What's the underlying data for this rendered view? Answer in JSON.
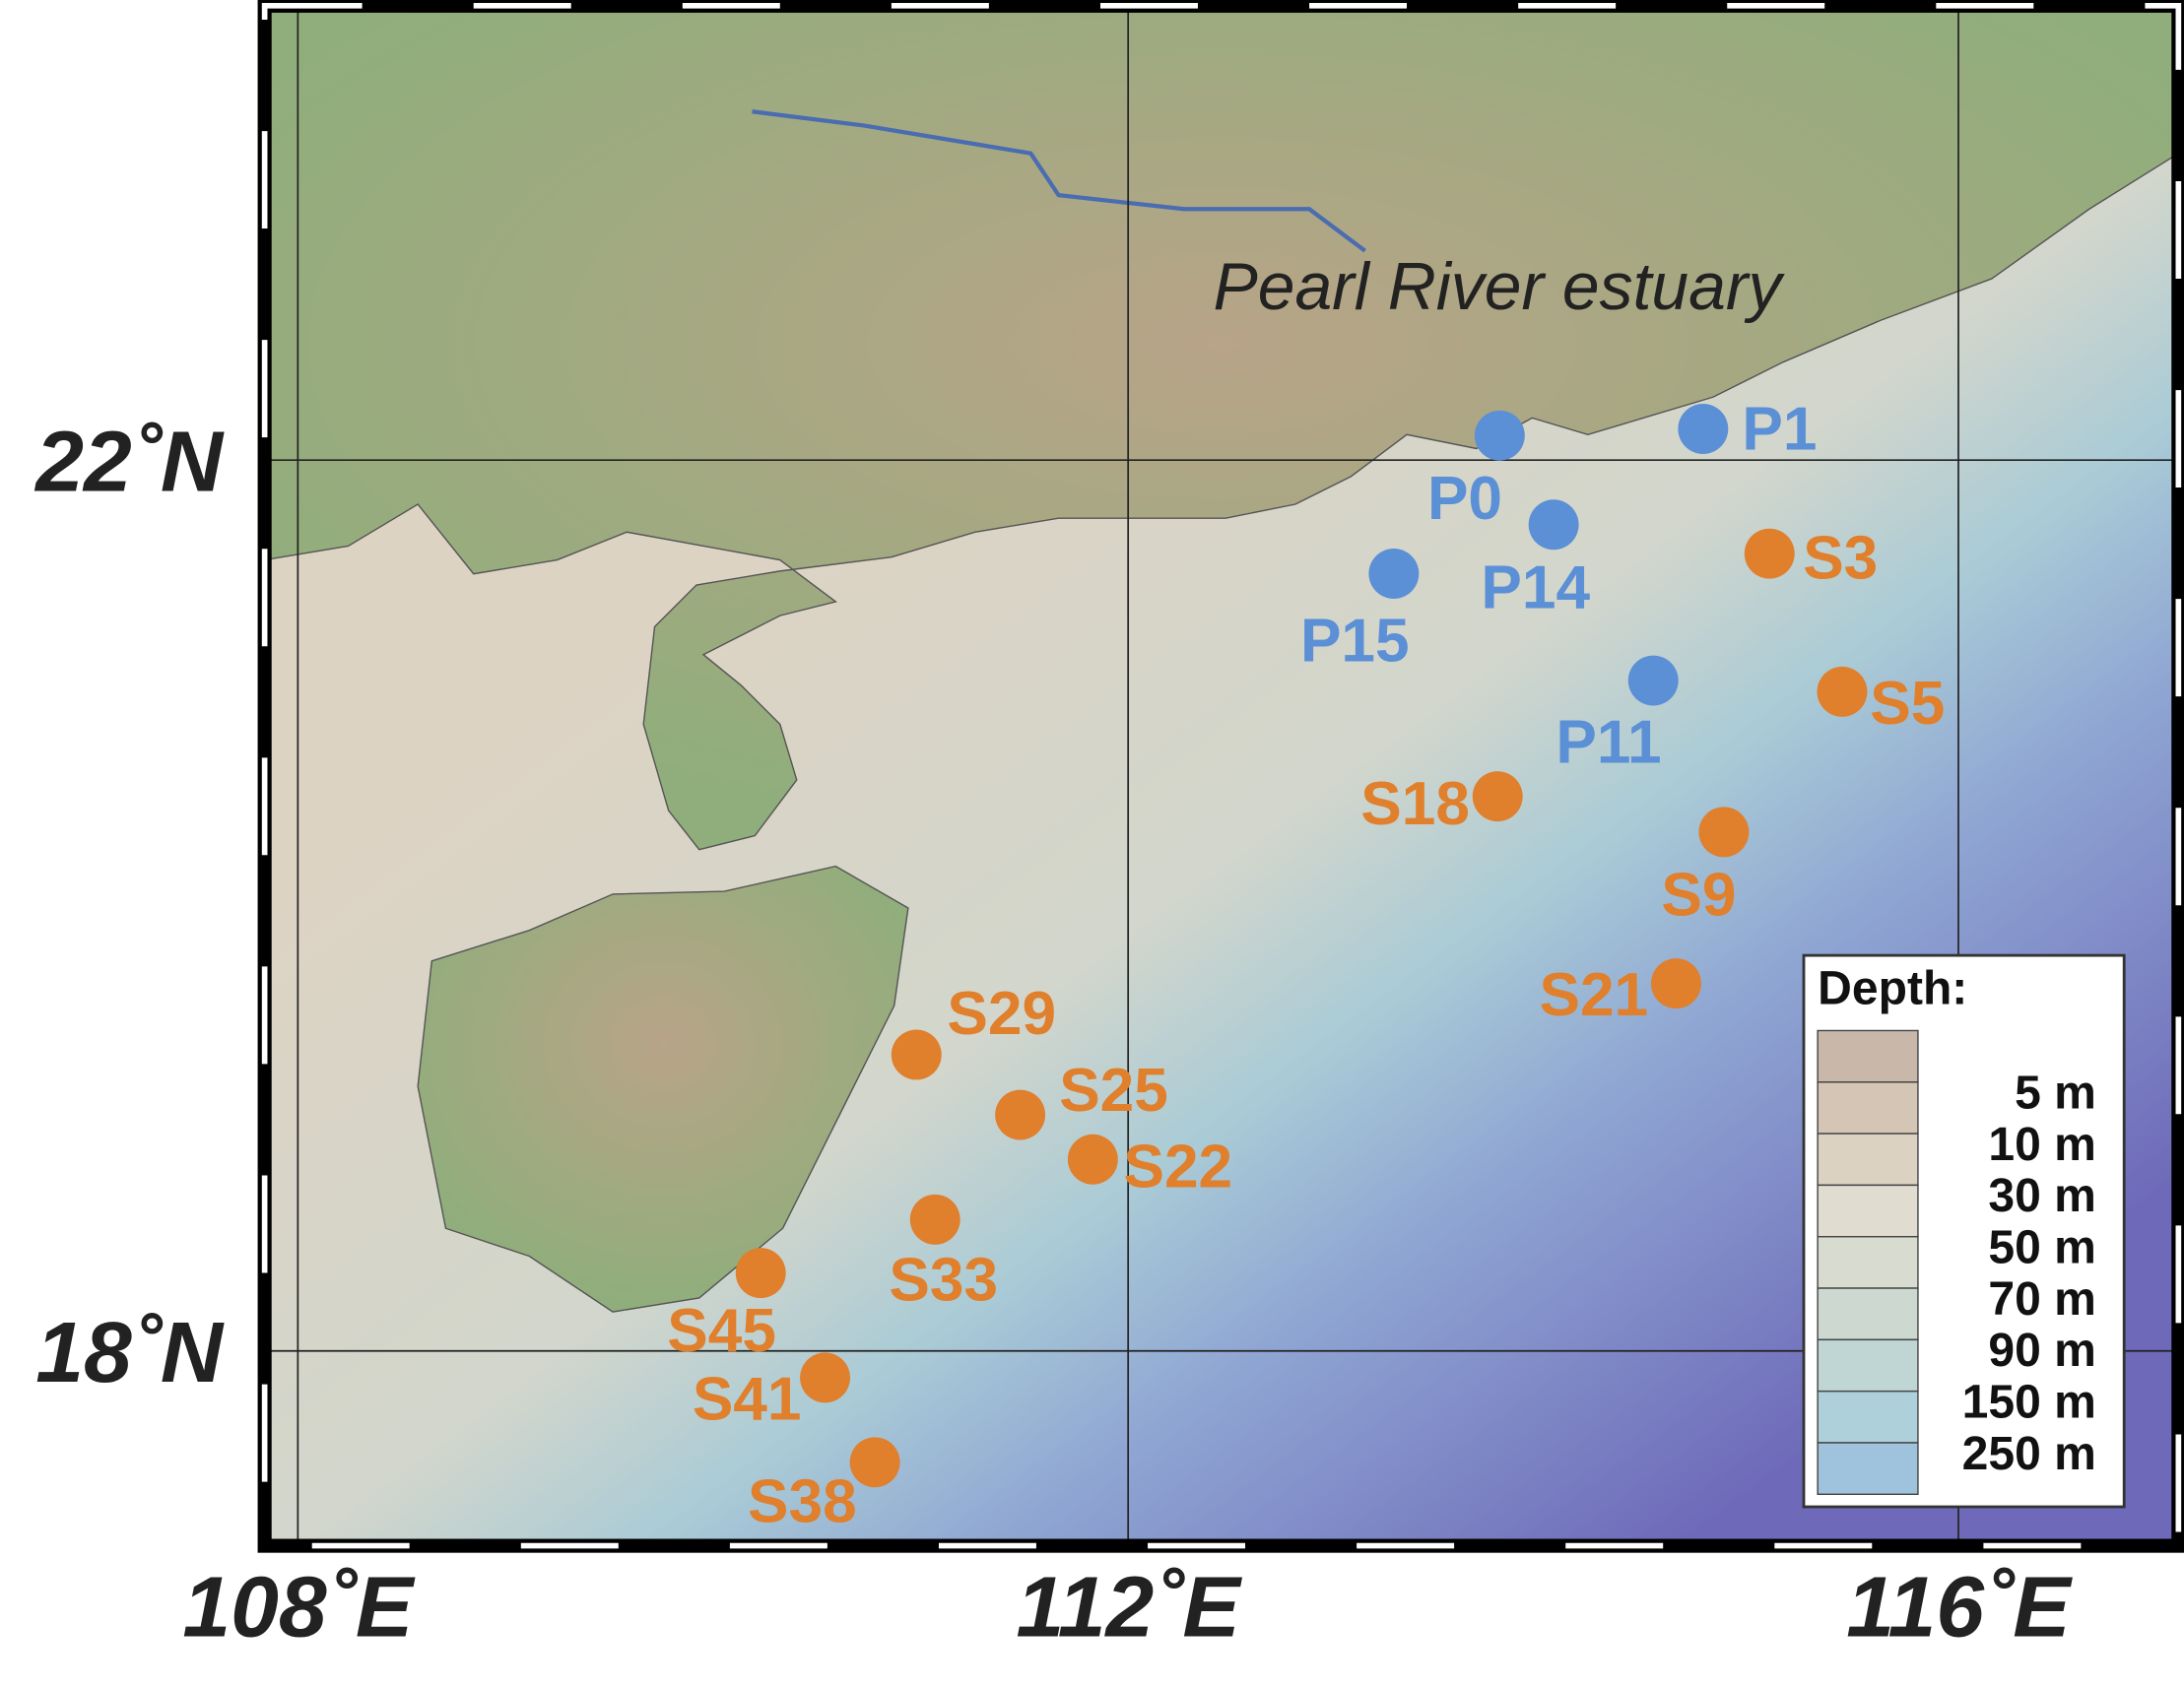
{
  "map": {
    "annotation": "Pearl River estuary",
    "lon_range": [
      107.84,
      117.06
    ],
    "lat_range": [
      17.125,
      24.04
    ],
    "lon_ticks": [
      {
        "value": 108,
        "label": "108˚E"
      },
      {
        "value": 112,
        "label": "112˚E"
      },
      {
        "value": 116,
        "label": "116˚E"
      }
    ],
    "lat_ticks": [
      {
        "value": 22,
        "label": "22˚N"
      },
      {
        "value": 18,
        "label": "18˚N"
      }
    ],
    "grid": true
  },
  "station_groups": [
    {
      "color": "#5b8fd6",
      "stations": [
        {
          "name": "P0",
          "lon": 113.79,
          "lat": 22.11
        },
        {
          "name": "P1",
          "lon": 114.77,
          "lat": 22.14
        },
        {
          "name": "P14",
          "lon": 114.05,
          "lat": 21.71
        },
        {
          "name": "P15",
          "lon": 113.28,
          "lat": 21.49
        },
        {
          "name": "P11",
          "lon": 114.53,
          "lat": 21.01
        }
      ]
    },
    {
      "color": "#e07f2c",
      "stations": [
        {
          "name": "S3",
          "lon": 115.09,
          "lat": 21.58
        },
        {
          "name": "S5",
          "lon": 115.44,
          "lat": 20.96
        },
        {
          "name": "S18",
          "lon": 113.78,
          "lat": 20.49
        },
        {
          "name": "S9",
          "lon": 114.87,
          "lat": 20.33
        },
        {
          "name": "S21",
          "lon": 114.64,
          "lat": 19.65
        },
        {
          "name": "S29",
          "lon": 110.98,
          "lat": 19.33
        },
        {
          "name": "S25",
          "lon": 111.48,
          "lat": 19.06
        },
        {
          "name": "S22",
          "lon": 111.83,
          "lat": 18.86
        },
        {
          "name": "S33",
          "lon": 111.07,
          "lat": 18.59
        },
        {
          "name": "S45",
          "lon": 110.23,
          "lat": 18.35
        },
        {
          "name": "S41",
          "lon": 110.54,
          "lat": 17.88
        },
        {
          "name": "S38",
          "lon": 110.78,
          "lat": 17.5
        }
      ]
    }
  ],
  "legend": {
    "title": "Depth:",
    "labels": [
      "5 m",
      "10 m",
      "30 m",
      "50 m",
      "70 m",
      "90 m",
      "150 m",
      "250 m"
    ],
    "colors": [
      "#c9b8a9",
      "#d4c5b4",
      "#dcd2c2",
      "#e0dccf",
      "#d8dcd0",
      "#cdd9d0",
      "#bfd6d4",
      "#aed0da",
      "#9fc3dc"
    ]
  }
}
